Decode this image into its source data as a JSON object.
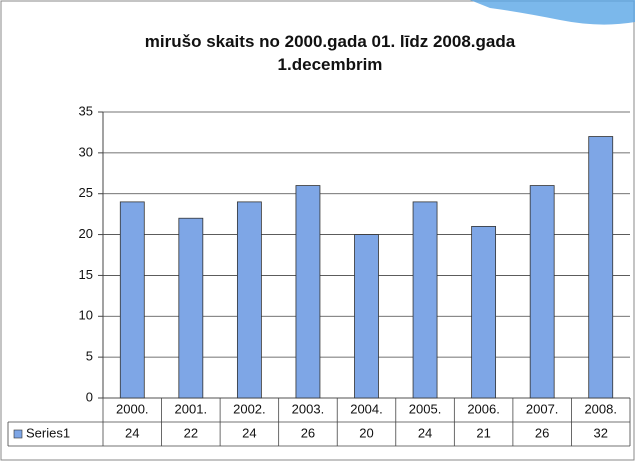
{
  "chart_data": {
    "type": "bar",
    "title": "mirušo skaits no 2000.gada 01. līdz 2008.gada 1.decembrim",
    "categories": [
      "2000.",
      "2001.",
      "2002.",
      "2003.",
      "2004.",
      "2005.",
      "2006.",
      "2007.",
      "2008."
    ],
    "series": [
      {
        "name": "Series1",
        "color": "#7ea6e6",
        "values": [
          24,
          22,
          24,
          26,
          20,
          24,
          21,
          26,
          32
        ]
      }
    ],
    "ylim": [
      0,
      35
    ],
    "yticks": [
      0,
      5,
      10,
      15,
      20,
      25,
      30,
      35
    ],
    "grid": true
  }
}
